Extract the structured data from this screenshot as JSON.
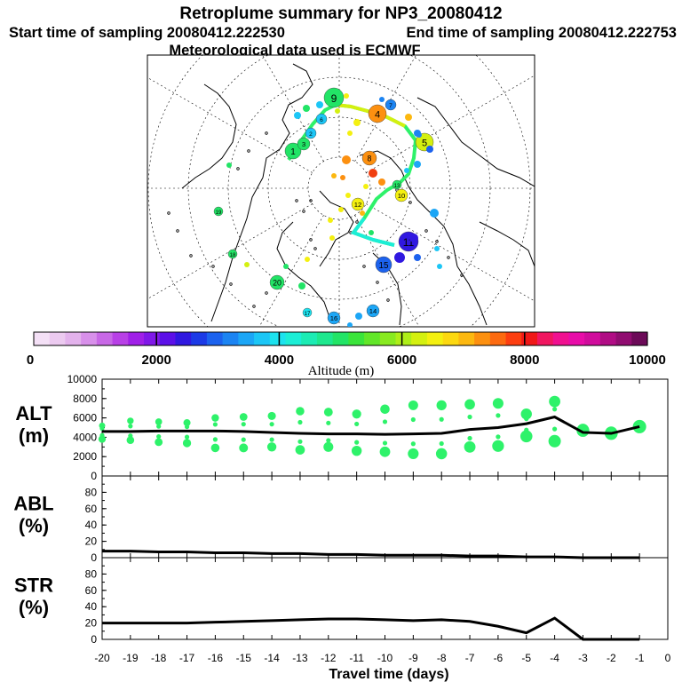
{
  "header": {
    "title": "Retroplume summary for NP3_20080412",
    "start_time": "Start time of sampling 20080412.222530",
    "end_time": "End time of sampling 20080412.222753",
    "met_data": "Meteorological data used is ECMWF"
  },
  "colorbar": {
    "label": "Altitude (m)",
    "ticks": [
      "0",
      "2000",
      "4000",
      "6000",
      "8000",
      "10000"
    ],
    "colors": [
      "#f4e0f6",
      "#eccaf0",
      "#e3b2ec",
      "#d890ea",
      "#c868e6",
      "#b840e6",
      "#a020e8",
      "#8018e8",
      "#5c10e8",
      "#3018e0",
      "#1c3ae6",
      "#1c62ee",
      "#1c84f2",
      "#1ca6f6",
      "#1cc6f6",
      "#1ce2ee",
      "#1ceed6",
      "#1cecb4",
      "#1ee88e",
      "#22e466",
      "#3ae43a",
      "#62e628",
      "#88ea20",
      "#aeee18",
      "#d4f010",
      "#f4f010",
      "#fcd810",
      "#fcb810",
      "#fc9010",
      "#fc6a10",
      "#fc3e10",
      "#f01818",
      "#f01660",
      "#f01090",
      "#e80ca8",
      "#d00c9c",
      "#b00c84",
      "#900c70",
      "#6c0a58"
    ]
  },
  "map": {
    "markers": [
      {
        "label": "1",
        "color": "#22e466"
      },
      {
        "label": "2",
        "color": "#1cc6f6"
      },
      {
        "label": "3",
        "color": "#22e466"
      },
      {
        "label": "4",
        "color": "#fc9010"
      },
      {
        "label": "5",
        "color": "#d4f010"
      },
      {
        "label": "6",
        "color": "#1cc6f6"
      },
      {
        "label": "7",
        "color": "#1c84f2"
      },
      {
        "label": "8",
        "color": "#fc9010"
      },
      {
        "label": "9",
        "color": "#22e466"
      },
      {
        "label": "10",
        "color": "#f4f010"
      },
      {
        "label": "11",
        "color": "#3018e0"
      },
      {
        "label": "12",
        "color": "#f4f010"
      },
      {
        "label": "13",
        "color": "#22e466"
      },
      {
        "label": "14",
        "color": "#1ca6f6"
      },
      {
        "label": "15",
        "color": "#1c62ee"
      },
      {
        "label": "16",
        "color": "#1ca6f6"
      },
      {
        "label": "17",
        "color": "#1ce2ee"
      },
      {
        "label": "18",
        "color": "#22e466"
      },
      {
        "label": "19",
        "color": "#22e466"
      },
      {
        "label": "20",
        "color": "#22e466"
      }
    ]
  },
  "chart_data": [
    {
      "type": "line",
      "panel": "ALT",
      "ylabel": "ALT",
      "yunit": "(m)",
      "ylim": [
        0,
        10000
      ],
      "yticks": [
        "0",
        "2000",
        "4000",
        "6000",
        "8000",
        "10000"
      ],
      "x": [
        -20,
        -19,
        -18,
        -17,
        -16,
        -15,
        -14,
        -13,
        -12,
        -11,
        -10,
        -9,
        -8,
        -7,
        -6,
        -5,
        -4,
        -3,
        -2,
        -1
      ],
      "median": [
        4600,
        4600,
        4650,
        4650,
        4650,
        4600,
        4500,
        4400,
        4350,
        4350,
        4300,
        4350,
        4400,
        4800,
        5000,
        5400,
        6100,
        4500,
        4400,
        5100
      ],
      "spread_upper": [
        5200,
        5700,
        5600,
        5500,
        6000,
        6100,
        6200,
        6700,
        6600,
        6400,
        6900,
        7300,
        7300,
        7400,
        7500,
        6400,
        7700,
        4800,
        4500,
        5100
      ],
      "spread_lower": [
        3800,
        3700,
        3500,
        3400,
        2900,
        2900,
        3000,
        2700,
        3000,
        2600,
        2500,
        2300,
        2300,
        3000,
        3100,
        4100,
        3600,
        4700,
        4400,
        5100
      ]
    },
    {
      "type": "line",
      "panel": "ABL",
      "ylabel": "ABL",
      "yunit": "(%)",
      "ylim": [
        0,
        100
      ],
      "yticks": [
        "0",
        "20",
        "40",
        "60",
        "80"
      ],
      "x": [
        -20,
        -19,
        -18,
        -17,
        -16,
        -15,
        -14,
        -13,
        -12,
        -11,
        -10,
        -9,
        -8,
        -7,
        -6,
        -5,
        -4,
        -3,
        -2,
        -1
      ],
      "values": [
        8,
        8,
        7,
        7,
        6,
        6,
        5,
        5,
        4,
        4,
        3,
        3,
        3,
        2,
        2,
        1,
        1,
        0,
        0,
        0
      ]
    },
    {
      "type": "line",
      "panel": "STR",
      "ylabel": "STR",
      "yunit": "(%)",
      "ylim": [
        0,
        100
      ],
      "yticks": [
        "0",
        "20",
        "40",
        "60",
        "80"
      ],
      "x": [
        -20,
        -19,
        -18,
        -17,
        -16,
        -15,
        -14,
        -13,
        -12,
        -11,
        -10,
        -9,
        -8,
        -7,
        -6,
        -5,
        -4,
        -3,
        -2,
        -1
      ],
      "values": [
        20,
        20,
        20,
        20,
        21,
        22,
        23,
        24,
        25,
        25,
        24,
        23,
        24,
        22,
        16,
        8,
        26,
        0,
        0,
        0
      ]
    }
  ],
  "xaxis": {
    "label": "Travel time (days)",
    "ticks": [
      "-20",
      "-19",
      "-18",
      "-17",
      "-16",
      "-15",
      "-14",
      "-13",
      "-12",
      "-11",
      "-10",
      "-9",
      "-8",
      "-7",
      "-6",
      "-5",
      "-4",
      "-3",
      "-2",
      "-1",
      "0"
    ]
  }
}
